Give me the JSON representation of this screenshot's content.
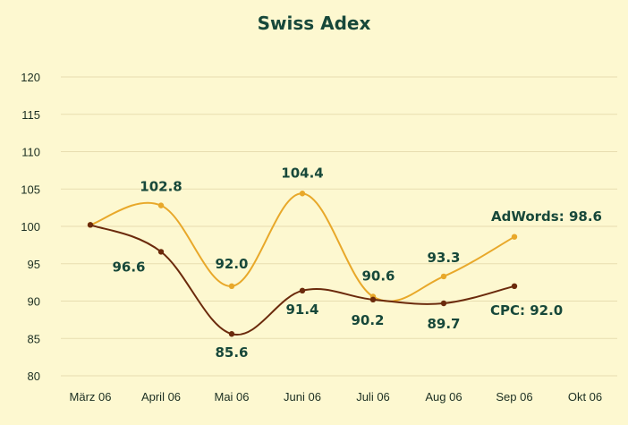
{
  "chart_data": {
    "type": "line",
    "title": "Swiss Adex",
    "categories": [
      "März 06",
      "April 06",
      "Mai 06",
      "Juni 06",
      "Juli 06",
      "Aug 06",
      "Sep 06",
      "Okt 06"
    ],
    "ylim": [
      80,
      120
    ],
    "yticks": [
      80,
      85,
      90,
      95,
      100,
      105,
      110,
      115,
      120
    ],
    "grid": true,
    "legend": "none",
    "series": [
      {
        "name": "AdWords",
        "end_label": "AdWords: 98.6",
        "color": "#e8a82a",
        "values": [
          100.2,
          102.8,
          92.0,
          104.4,
          90.6,
          93.3,
          98.6,
          null
        ],
        "labels": [
          "",
          "102.8",
          "92.0",
          "104.4",
          "90.6",
          "93.3",
          "",
          ""
        ]
      },
      {
        "name": "CPC",
        "end_label": "CPC: 92.0",
        "color": "#6b2a0c",
        "values": [
          100.2,
          96.6,
          85.6,
          91.4,
          90.2,
          89.7,
          92.0,
          null
        ],
        "labels": [
          "",
          "96.6",
          "85.6",
          "91.4",
          "90.2",
          "89.7",
          "",
          ""
        ]
      }
    ]
  }
}
